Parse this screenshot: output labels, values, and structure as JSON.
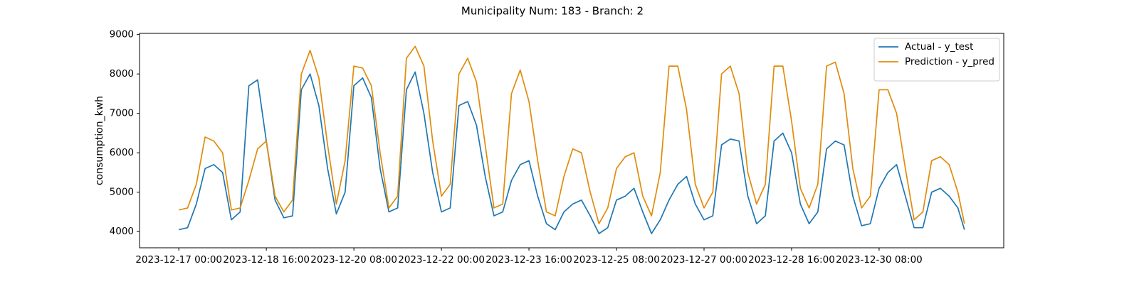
{
  "chart_data": {
    "type": "line",
    "title": "Municipality Num: 183 - Branch: 2",
    "ylabel": "consumption_kwh",
    "x": [
      "2023-12-17 00:00",
      "2023-12-17 04:00",
      "2023-12-17 08:00",
      "2023-12-17 12:00",
      "2023-12-17 16:00",
      "2023-12-17 20:00",
      "2023-12-18 00:00",
      "2023-12-18 04:00",
      "2023-12-18 08:00",
      "2023-12-18 12:00",
      "2023-12-18 16:00",
      "2023-12-18 20:00",
      "2023-12-19 00:00",
      "2023-12-19 04:00",
      "2023-12-19 08:00",
      "2023-12-19 12:00",
      "2023-12-19 16:00",
      "2023-12-19 20:00",
      "2023-12-20 00:00",
      "2023-12-20 04:00",
      "2023-12-20 08:00",
      "2023-12-20 12:00",
      "2023-12-20 16:00",
      "2023-12-20 20:00",
      "2023-12-21 00:00",
      "2023-12-21 04:00",
      "2023-12-21 08:00",
      "2023-12-21 12:00",
      "2023-12-21 16:00",
      "2023-12-21 20:00",
      "2023-12-22 00:00",
      "2023-12-22 04:00",
      "2023-12-22 08:00",
      "2023-12-22 12:00",
      "2023-12-22 16:00",
      "2023-12-22 20:00",
      "2023-12-23 00:00",
      "2023-12-23 04:00",
      "2023-12-23 08:00",
      "2023-12-23 12:00",
      "2023-12-23 16:00",
      "2023-12-23 20:00",
      "2023-12-24 00:00",
      "2023-12-24 04:00",
      "2023-12-24 08:00",
      "2023-12-24 12:00",
      "2023-12-24 16:00",
      "2023-12-24 20:00",
      "2023-12-25 00:00",
      "2023-12-25 04:00",
      "2023-12-25 08:00",
      "2023-12-25 12:00",
      "2023-12-25 16:00",
      "2023-12-25 20:00",
      "2023-12-26 00:00",
      "2023-12-26 04:00",
      "2023-12-26 08:00",
      "2023-12-26 12:00",
      "2023-12-26 16:00",
      "2023-12-26 20:00",
      "2023-12-27 00:00",
      "2023-12-27 04:00",
      "2023-12-27 08:00",
      "2023-12-27 12:00",
      "2023-12-27 16:00",
      "2023-12-27 20:00",
      "2023-12-28 00:00",
      "2023-12-28 04:00",
      "2023-12-28 08:00",
      "2023-12-28 12:00",
      "2023-12-28 16:00",
      "2023-12-28 20:00",
      "2023-12-29 00:00",
      "2023-12-29 04:00",
      "2023-12-29 08:00",
      "2023-12-29 12:00",
      "2023-12-29 16:00",
      "2023-12-29 20:00",
      "2023-12-30 00:00",
      "2023-12-30 04:00",
      "2023-12-30 08:00",
      "2023-12-30 12:00",
      "2023-12-30 16:00",
      "2023-12-30 20:00",
      "2023-12-31 00:00",
      "2023-12-31 04:00",
      "2023-12-31 08:00",
      "2023-12-31 12:00",
      "2023-12-31 16:00",
      "2023-12-31 20:00",
      "2023-12-31 23:00"
    ],
    "series": [
      {
        "name": "Actual - y_test",
        "color": "#1f77b4",
        "values": [
          4050,
          4100,
          4700,
          5600,
          5700,
          5500,
          4300,
          4500,
          7700,
          7850,
          6300,
          4800,
          4350,
          4400,
          7600,
          8000,
          7200,
          5600,
          4450,
          5000,
          7700,
          7900,
          7400,
          5600,
          4500,
          4600,
          7600,
          8050,
          7000,
          5500,
          4500,
          4600,
          7200,
          7300,
          6700,
          5400,
          4400,
          4500,
          5300,
          5700,
          5800,
          4900,
          4200,
          4050,
          4500,
          4700,
          4800,
          4400,
          3950,
          4100,
          4800,
          4900,
          5100,
          4500,
          3950,
          4300,
          4800,
          5200,
          5400,
          4700,
          4300,
          4400,
          6200,
          6350,
          6300,
          4900,
          4200,
          4400,
          6300,
          6500,
          6000,
          4700,
          4200,
          4500,
          6100,
          6300,
          6200,
          4900,
          4150,
          4200,
          5100,
          5500,
          5700,
          4900,
          4100,
          4100,
          5000,
          5100,
          4900,
          4600,
          4050
        ]
      },
      {
        "name": "Prediction - y_pred",
        "color": "#e08c0b",
        "values": [
          4550,
          4600,
          5200,
          6400,
          6300,
          6000,
          4550,
          4600,
          5300,
          6100,
          6300,
          4900,
          4500,
          4800,
          8000,
          8600,
          7900,
          6200,
          4700,
          5800,
          8200,
          8150,
          7700,
          6000,
          4600,
          4900,
          8400,
          8700,
          8200,
          6300,
          4900,
          5200,
          8000,
          8400,
          7800,
          6200,
          4600,
          4700,
          7500,
          8100,
          7300,
          5800,
          4500,
          4400,
          5400,
          6100,
          6000,
          5000,
          4200,
          4600,
          5600,
          5900,
          6000,
          4900,
          4400,
          5500,
          8200,
          8200,
          7100,
          5200,
          4600,
          5000,
          8000,
          8200,
          7500,
          5500,
          4700,
          5200,
          8200,
          8200,
          6800,
          5100,
          4600,
          5200,
          8200,
          8300,
          7500,
          5600,
          4600,
          4900,
          7600,
          7600,
          7000,
          5600,
          4300,
          4500,
          5800,
          5900,
          5700,
          5000,
          4200
        ]
      }
    ],
    "xticks": [
      "2023-12-17 00:00",
      "2023-12-18 16:00",
      "2023-12-20 08:00",
      "2023-12-22 00:00",
      "2023-12-23 16:00",
      "2023-12-25 08:00",
      "2023-12-27 00:00",
      "2023-12-28 16:00",
      "2023-12-30 08:00"
    ],
    "ylim": [
      3590,
      9030
    ],
    "yticks": [
      4000,
      5000,
      6000,
      7000,
      8000,
      9000
    ],
    "legend": "upper right"
  }
}
